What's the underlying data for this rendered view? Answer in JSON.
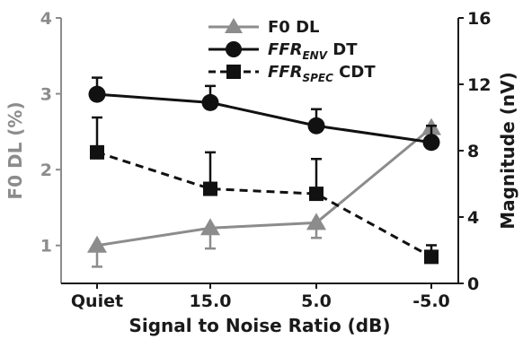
{
  "chart_data": {
    "type": "line",
    "categories": [
      "Quiet",
      "15.0",
      "5.0",
      "-5.0"
    ],
    "xlabel": "Signal to Noise Ratio (dB)",
    "ylabel_left": "F0 DL (%)",
    "ylabel_right": "Magnitude (nV)",
    "ylim_left": [
      0.5,
      4
    ],
    "ylim_right": [
      0,
      16
    ],
    "yticks_left": [
      1,
      2,
      3,
      4
    ],
    "yticks_right": [
      0,
      4,
      8,
      12,
      16
    ],
    "legend_position": "top-center",
    "series": [
      {
        "name": "F0 DL",
        "axis": "left",
        "values": [
          1.0,
          1.23,
          1.3,
          2.55
        ],
        "errors": [
          0.28,
          0.27,
          0.2,
          0.12
        ],
        "error_direction": "down",
        "marker": "triangle",
        "line_style": "solid",
        "color": "#8c8c8c"
      },
      {
        "name_main": "FFR",
        "name_sub": "ENV",
        "name_suffix": " DT",
        "axis": "right",
        "values": [
          11.4,
          10.9,
          9.5,
          8.5
        ],
        "errors": [
          1.0,
          1.0,
          1.0,
          1.0
        ],
        "error_direction": "up",
        "marker": "circle",
        "line_style": "solid",
        "color": "#111111"
      },
      {
        "name_main": "FFR",
        "name_sub": "SPEC",
        "name_suffix": " CDT",
        "axis": "right",
        "values": [
          7.9,
          5.7,
          5.4,
          1.6
        ],
        "errors": [
          2.1,
          2.2,
          2.1,
          0.7
        ],
        "error_direction": "up",
        "marker": "square",
        "line_style": "dashed",
        "color": "#111111"
      }
    ]
  }
}
